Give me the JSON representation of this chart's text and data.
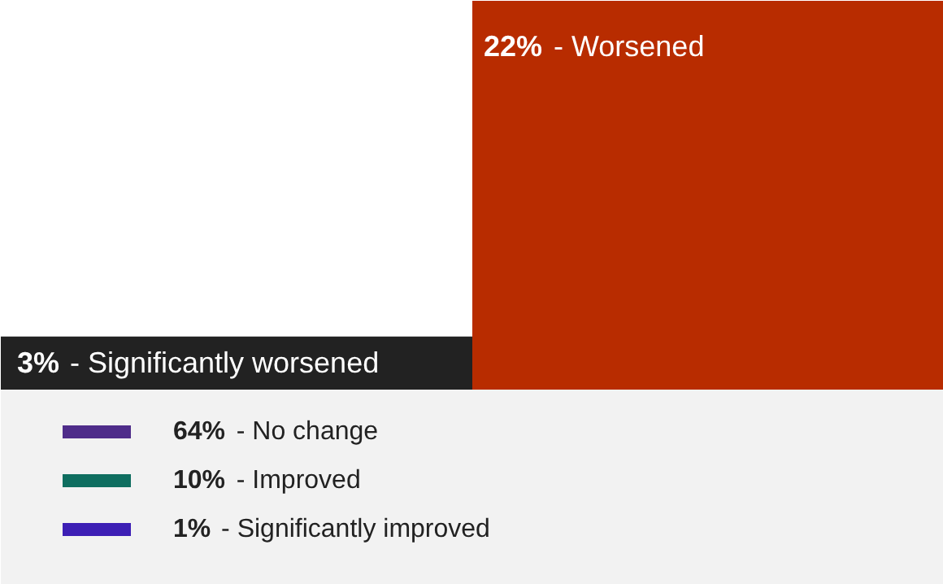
{
  "chart_data": {
    "type": "other",
    "categories": [
      "- Worsened",
      "- Significantly worsened",
      "- No change",
      "- Improved",
      "- Significantly improved"
    ],
    "values": [
      22,
      3,
      64,
      10,
      1
    ],
    "value_labels": [
      "22%",
      "3%",
      "64%",
      "10%",
      "1%"
    ],
    "colors": [
      "#b82c00",
      "#222222",
      "#4f2d8a",
      "#0f6e60",
      "#3d1fb5"
    ]
  }
}
